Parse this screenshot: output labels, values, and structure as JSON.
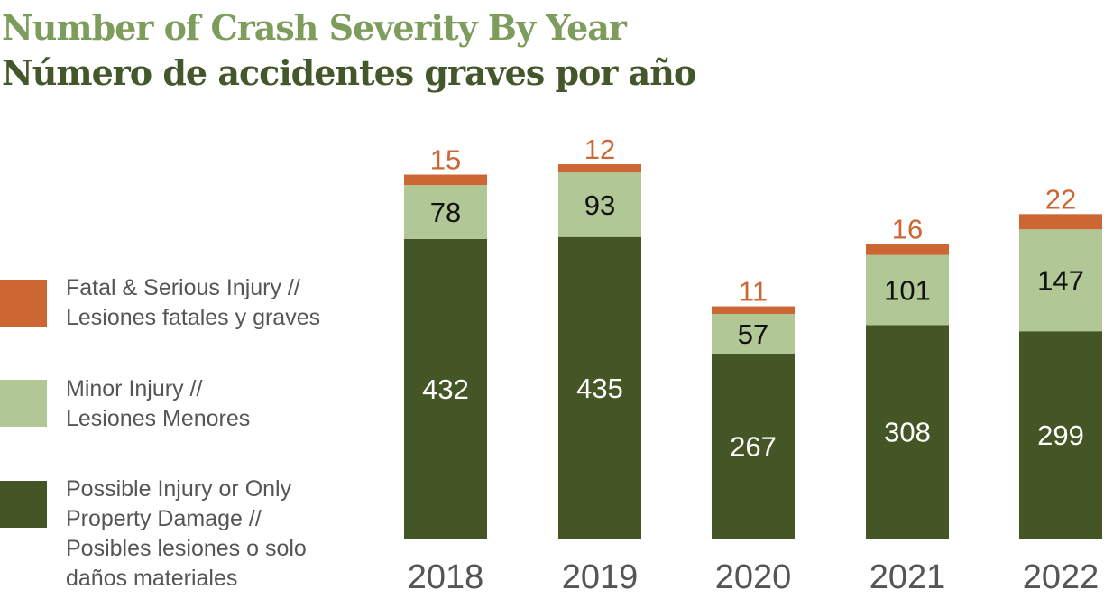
{
  "title_en": "Number of Crash Severity By Year",
  "title_es": "Número de accidentes graves por año",
  "legend": [
    {
      "lines": [
        "Fatal & Serious Injury //",
        "Lesiones fatales y graves"
      ],
      "color": "#cc6633"
    },
    {
      "lines": [
        "Minor Injury  //",
        "Lesiones Menores"
      ],
      "color": "#b1c795"
    },
    {
      "lines": [
        "Possible Injury or Only",
        "Property Damage  //",
        "Posibles lesiones o solo",
        "daños materiales"
      ],
      "color": "#445526"
    }
  ],
  "chart_data": {
    "type": "bar",
    "stacked": true,
    "categories": [
      "2018",
      "2019",
      "2020",
      "2021",
      "2022"
    ],
    "series": [
      {
        "name": "Possible Injury or Only Property Damage // Posibles lesiones o solo daños materiales",
        "values": [
          432,
          435,
          267,
          308,
          299
        ],
        "color": "#445526",
        "label_color": "#ffffff"
      },
      {
        "name": "Minor Injury // Lesiones Menores",
        "values": [
          78,
          93,
          57,
          101,
          147
        ],
        "color": "#b1c795",
        "label_color": "#111111"
      },
      {
        "name": "Fatal & Serious Injury // Lesiones fatales y graves",
        "values": [
          15,
          12,
          11,
          16,
          22
        ],
        "color": "#cc6633",
        "label_color": "#cc6633"
      }
    ],
    "title": "Number of Crash Severity By Year",
    "xlabel": "",
    "ylabel": "",
    "ylim": [
      0,
      540
    ],
    "grid": false,
    "legend_position": "left"
  }
}
